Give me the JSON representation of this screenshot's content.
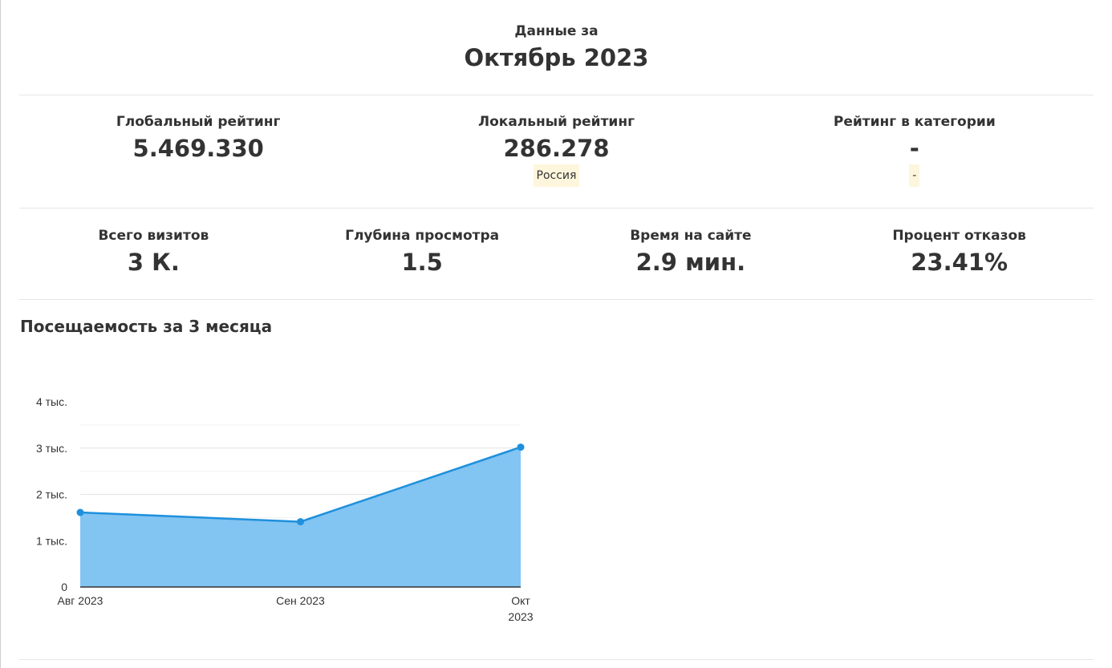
{
  "period": {
    "label": "Данные за",
    "value": "Октябрь 2023"
  },
  "ratings": [
    {
      "label": "Глобальный рейтинг",
      "value": "5.469.330",
      "badge": ""
    },
    {
      "label": "Локальный рейтинг",
      "value": "286.278",
      "badge": "Россия"
    },
    {
      "label": "Рейтинг в категории",
      "value": "-",
      "badge": "-"
    }
  ],
  "metrics": [
    {
      "label": "Всего визитов",
      "value": "3 К."
    },
    {
      "label": "Глубина просмотра",
      "value": "1.5"
    },
    {
      "label": "Время на сайте",
      "value": "2.9 мин."
    },
    {
      "label": "Процент отказов",
      "value": "23.41%"
    }
  ],
  "chart_title": "Посещаемость за 3 месяца",
  "chart_data": {
    "type": "area",
    "categories": [
      "Авг 2023",
      "Сен 2023",
      "Окт 2023"
    ],
    "series": [
      {
        "values": [
          1610,
          1410,
          3020
        ]
      }
    ],
    "yticks": [
      {
        "value": 0,
        "label": "0"
      },
      {
        "value": 1000,
        "label": "1 тыс."
      },
      {
        "value": 2000,
        "label": "2 тыс."
      },
      {
        "value": 3000,
        "label": "3 тыс."
      },
      {
        "value": 4000,
        "label": "4 тыс."
      }
    ],
    "ylim": [
      0,
      4000
    ],
    "grid": true,
    "line_color": "#1e90dc",
    "fill_color": "#82c4f2"
  }
}
